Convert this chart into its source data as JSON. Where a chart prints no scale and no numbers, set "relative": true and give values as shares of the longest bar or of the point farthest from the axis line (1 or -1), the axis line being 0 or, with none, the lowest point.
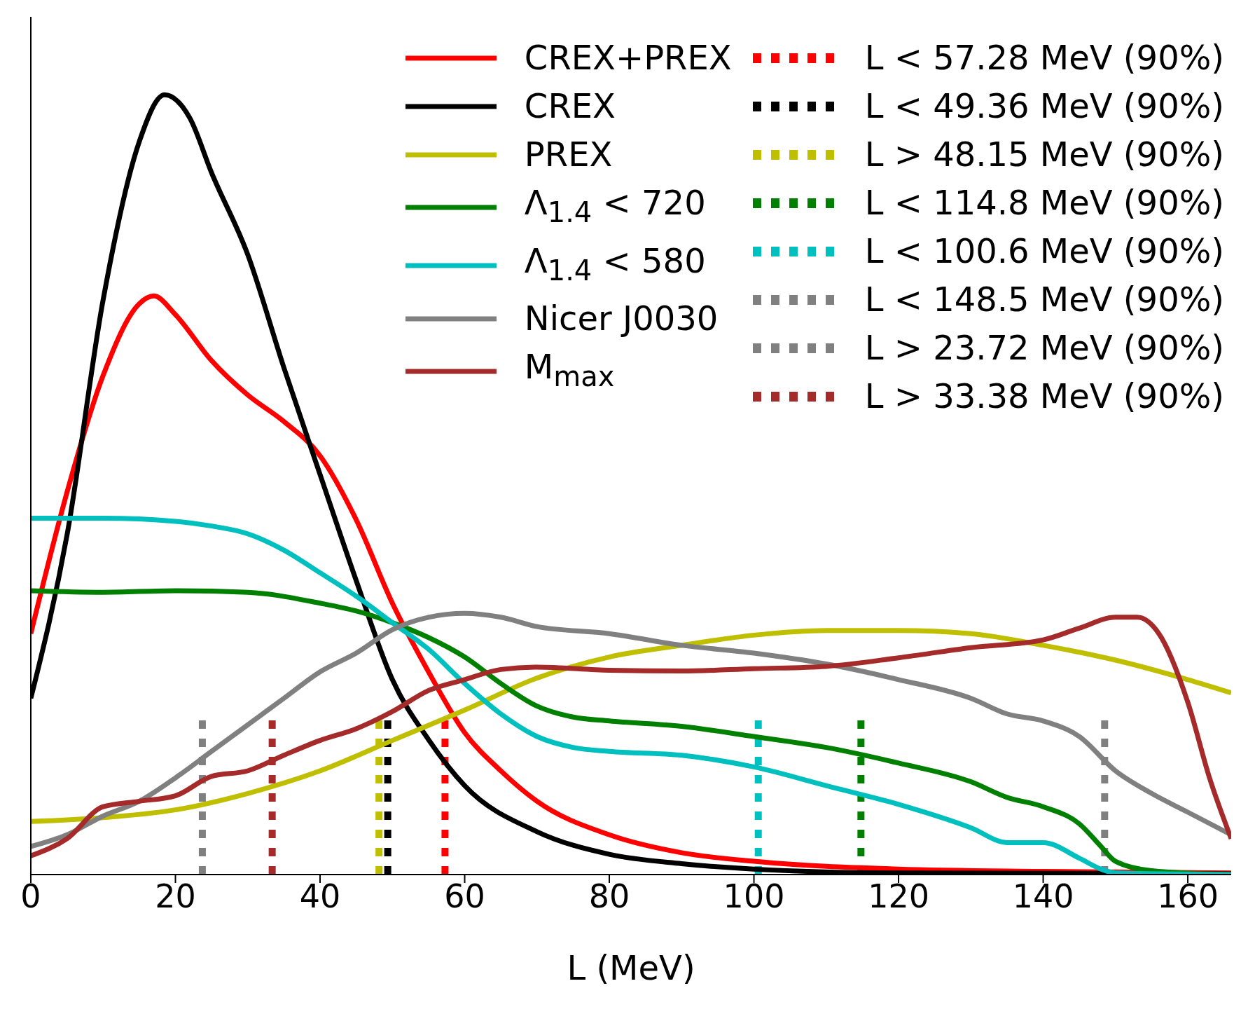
{
  "chart_data": {
    "type": "line",
    "relative": true,
    "xlabel": "L (MeV)",
    "xlim": [
      0,
      166
    ],
    "xticks": [
      0,
      20,
      40,
      60,
      80,
      100,
      120,
      140,
      160
    ],
    "legend": "top right",
    "line_style": "solid",
    "marker": "none",
    "series": [
      {
        "name": "CREX+PREX",
        "color": "#ff0000",
        "x": [
          0,
          5,
          10,
          15,
          17,
          20,
          25,
          30,
          35,
          40,
          45,
          50,
          55,
          60,
          65,
          70,
          80,
          90,
          100,
          120,
          140,
          166
        ],
        "values": [
          0.309,
          0.49,
          0.64,
          0.732,
          0.742,
          0.718,
          0.659,
          0.615,
          0.581,
          0.537,
          0.455,
          0.348,
          0.26,
          0.182,
          0.133,
          0.094,
          0.051,
          0.028,
          0.017,
          0.007,
          0.004,
          0.002
        ]
      },
      {
        "name": "CREX",
        "color": "#000000",
        "x": [
          0,
          5,
          10,
          15,
          18.5,
          22,
          25,
          30,
          35,
          40,
          45,
          50,
          55,
          60,
          70,
          80,
          90,
          100,
          120,
          166
        ],
        "values": [
          0.226,
          0.435,
          0.737,
          0.94,
          1,
          0.97,
          0.9,
          0.795,
          0.65,
          0.513,
          0.377,
          0.25,
          0.173,
          0.114,
          0.055,
          0.026,
          0.014,
          0.007,
          0.002,
          0.001
        ]
      },
      {
        "name": "PREX",
        "color": "#bfbf00",
        "x": [
          0,
          10,
          20,
          30,
          40,
          50,
          60,
          70,
          80,
          90,
          100,
          110,
          120,
          130,
          140,
          150,
          160,
          166
        ],
        "values": [
          0.068,
          0.073,
          0.083,
          0.104,
          0.133,
          0.172,
          0.211,
          0.252,
          0.279,
          0.294,
          0.307,
          0.313,
          0.313,
          0.309,
          0.294,
          0.275,
          0.25,
          0.233
        ]
      },
      {
        "name": "Λ$_{1.4}$ < 720",
        "color": "#008000",
        "x": [
          0,
          10,
          20,
          30,
          40,
          45,
          50,
          55,
          60,
          65,
          70,
          75,
          80,
          90,
          100,
          110,
          120,
          130,
          135,
          140,
          145,
          148,
          150,
          155,
          166
        ],
        "values": [
          0.364,
          0.362,
          0.364,
          0.362,
          0.348,
          0.338,
          0.323,
          0.304,
          0.279,
          0.245,
          0.216,
          0.202,
          0.197,
          0.19,
          0.177,
          0.163,
          0.143,
          0.119,
          0.099,
          0.087,
          0.065,
          0.036,
          0.017,
          0.005,
          0
        ]
      },
      {
        "name": "Λ$_{1.4}$ < 580",
        "color": "#00bfbf",
        "x": [
          0,
          10,
          20,
          25,
          30,
          35,
          40,
          45,
          50,
          55,
          60,
          65,
          70,
          75,
          80,
          90,
          100,
          110,
          120,
          130,
          135,
          140,
          145,
          148,
          150,
          166
        ],
        "values": [
          0.457,
          0.457,
          0.453,
          0.447,
          0.437,
          0.416,
          0.387,
          0.357,
          0.323,
          0.289,
          0.245,
          0.206,
          0.177,
          0.163,
          0.158,
          0.153,
          0.138,
          0.114,
          0.09,
          0.06,
          0.041,
          0.041,
          0.021,
          0.007,
          0.002,
          0
        ]
      },
      {
        "name": "Nicer J0030",
        "color": "#808080",
        "x": [
          0,
          5,
          10,
          15,
          20,
          25,
          30,
          35,
          40,
          45,
          50,
          55,
          60,
          65,
          70,
          80,
          90,
          100,
          110,
          120,
          130,
          135,
          140,
          145,
          150,
          155,
          160,
          166
        ],
        "values": [
          0.036,
          0.051,
          0.075,
          0.094,
          0.124,
          0.158,
          0.192,
          0.226,
          0.26,
          0.284,
          0.314,
          0.33,
          0.335,
          0.33,
          0.318,
          0.309,
          0.294,
          0.284,
          0.27,
          0.25,
          0.226,
          0.206,
          0.197,
          0.177,
          0.133,
          0.104,
          0.08,
          0.051
        ]
      },
      {
        "name": "M$_{max}$",
        "color": "#a52a2a",
        "x": [
          0,
          5,
          10,
          15,
          20,
          25,
          30,
          35,
          40,
          45,
          50,
          55,
          60,
          65,
          70,
          80,
          90,
          100,
          110,
          120,
          130,
          140,
          145,
          150,
          153,
          156,
          160,
          163,
          166
        ],
        "values": [
          0.024,
          0.046,
          0.087,
          0.094,
          0.101,
          0.126,
          0.133,
          0.153,
          0.172,
          0.187,
          0.209,
          0.236,
          0.25,
          0.263,
          0.266,
          0.262,
          0.261,
          0.264,
          0.267,
          0.278,
          0.291,
          0.301,
          0.316,
          0.33,
          0.33,
          0.309,
          0.221,
          0.124,
          0.046
        ]
      }
    ],
    "ref_lines": [
      {
        "axis": "x",
        "value": 57.28,
        "label": "L < 57.28 MeV (90%)",
        "color": "#ff0000",
        "line_style": "dotted"
      },
      {
        "axis": "x",
        "value": 49.36,
        "label": "L < 49.36 MeV (90%)",
        "color": "#000000",
        "line_style": "dotted"
      },
      {
        "axis": "x",
        "value": 48.15,
        "label": "L > 48.15 MeV (90%)",
        "color": "#bfbf00",
        "line_style": "dotted"
      },
      {
        "axis": "x",
        "value": 114.8,
        "label": "L < 114.8 MeV (90%)",
        "color": "#008000",
        "line_style": "dotted"
      },
      {
        "axis": "x",
        "value": 100.6,
        "label": "L < 100.6 MeV (90%)",
        "color": "#00bfbf",
        "line_style": "dotted"
      },
      {
        "axis": "x",
        "value": 148.5,
        "label": "L < 148.5 MeV (90%)",
        "color": "#808080",
        "line_style": "dotted"
      },
      {
        "axis": "x",
        "value": 23.72,
        "label": "L > 23.72 MeV (90%)",
        "color": "#808080",
        "line_style": "dotted"
      },
      {
        "axis": "x",
        "value": 33.38,
        "label": "L > 33.38 MeV (90%)",
        "color": "#a52a2a",
        "line_style": "dotted"
      }
    ]
  }
}
